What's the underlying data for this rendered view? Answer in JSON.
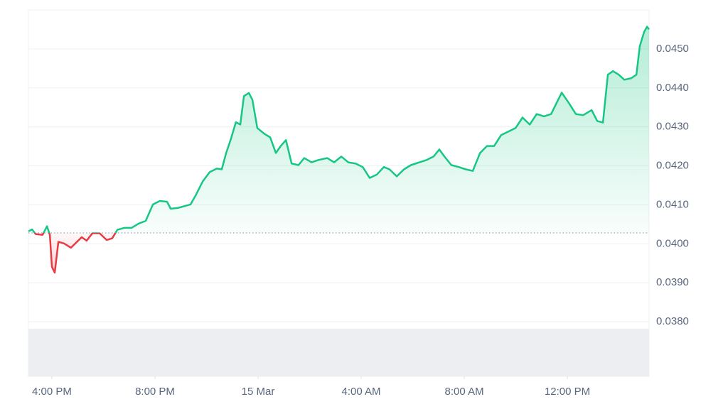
{
  "chart_data": {
    "type": "line",
    "x": [
      15.09,
      15.23,
      15.37,
      15.64,
      15.81,
      15.92,
      16.0,
      16.11,
      16.25,
      16.47,
      16.74,
      16.97,
      17.16,
      17.35,
      17.57,
      17.85,
      18.12,
      18.34,
      18.54,
      18.81,
      19.09,
      19.37,
      19.64,
      19.92,
      20.19,
      20.47,
      20.61,
      20.88,
      21.1,
      21.38,
      21.57,
      21.85,
      22.12,
      22.4,
      22.59,
      22.76,
      22.95,
      23.14,
      23.31,
      23.45,
      23.64,
      23.78,
      23.97,
      24.25,
      24.47,
      24.69,
      24.88,
      25.08,
      25.3,
      25.57,
      25.79,
      26.07,
      26.34,
      26.68,
      26.95,
      27.23,
      27.5,
      27.78,
      28.06,
      28.33,
      28.61,
      28.88,
      29.1,
      29.38,
      29.66,
      29.93,
      30.26,
      30.54,
      30.81,
      31.03,
      31.23,
      31.5,
      31.78,
      32.06,
      32.33,
      32.61,
      32.88,
      33.16,
      33.43,
      33.71,
      33.99,
      34.26,
      34.54,
      34.81,
      35.09,
      35.37,
      35.78,
      36.06,
      36.33,
      36.61,
      36.94,
      37.16,
      37.38,
      37.57,
      37.77,
      37.99,
      38.21,
      38.48,
      38.68,
      38.81,
      38.98,
      39.09,
      39.17
    ],
    "series": [
      {
        "color": "#16c784",
        "below_color": "#ea3943",
        "values": [
          0.04032,
          0.04037,
          0.04025,
          0.04023,
          0.04045,
          0.04023,
          0.03941,
          0.03926,
          0.04005,
          0.04001,
          0.0399,
          0.04005,
          0.04017,
          0.04008,
          0.04027,
          0.04027,
          0.0401,
          0.04014,
          0.04036,
          0.04041,
          0.04041,
          0.04052,
          0.04059,
          0.04101,
          0.0411,
          0.04108,
          0.0409,
          0.04092,
          0.04096,
          0.04101,
          0.04123,
          0.0416,
          0.04184,
          0.04193,
          0.04191,
          0.04233,
          0.0427,
          0.04312,
          0.04306,
          0.04379,
          0.04387,
          0.0437,
          0.04297,
          0.04282,
          0.04273,
          0.04233,
          0.04251,
          0.04266,
          0.04206,
          0.04202,
          0.0422,
          0.04209,
          0.04215,
          0.0422,
          0.04209,
          0.04224,
          0.04209,
          0.04206,
          0.04197,
          0.04169,
          0.04178,
          0.04197,
          0.04191,
          0.04173,
          0.04191,
          0.04202,
          0.04209,
          0.04215,
          0.04224,
          0.04242,
          0.04224,
          0.04202,
          0.04197,
          0.04191,
          0.04187,
          0.04233,
          0.04251,
          0.04251,
          0.04279,
          0.04288,
          0.04297,
          0.04324,
          0.04306,
          0.04333,
          0.04327,
          0.04333,
          0.04388,
          0.04361,
          0.04333,
          0.0433,
          0.04343,
          0.04315,
          0.04311,
          0.04434,
          0.04443,
          0.04434,
          0.04421,
          0.04425,
          0.04434,
          0.04507,
          0.04544,
          0.04557,
          0.0455
        ]
      }
    ],
    "baseline": 0.04028,
    "xlim": [
      15.09,
      39.17
    ],
    "xticks": [
      {
        "value": 16,
        "label": "4:00 PM"
      },
      {
        "value": 20,
        "label": "8:00 PM"
      },
      {
        "value": 24,
        "label": "15 Mar"
      },
      {
        "value": 28,
        "label": "4:00 AM"
      },
      {
        "value": 32,
        "label": "8:00 AM"
      },
      {
        "value": 36,
        "label": "12:00 PM"
      }
    ],
    "ylim": [
      0.0366,
      0.046
    ],
    "yticks": [
      {
        "value": 0.038,
        "label": "0.0380"
      },
      {
        "value": 0.039,
        "label": "0.0390"
      },
      {
        "value": 0.04,
        "label": "0.0400"
      },
      {
        "value": 0.041,
        "label": "0.0410"
      },
      {
        "value": 0.042,
        "label": "0.0420"
      },
      {
        "value": 0.043,
        "label": "0.0430"
      },
      {
        "value": 0.044,
        "label": "0.0440"
      },
      {
        "value": 0.045,
        "label": "0.0450"
      }
    ],
    "grid": true
  }
}
